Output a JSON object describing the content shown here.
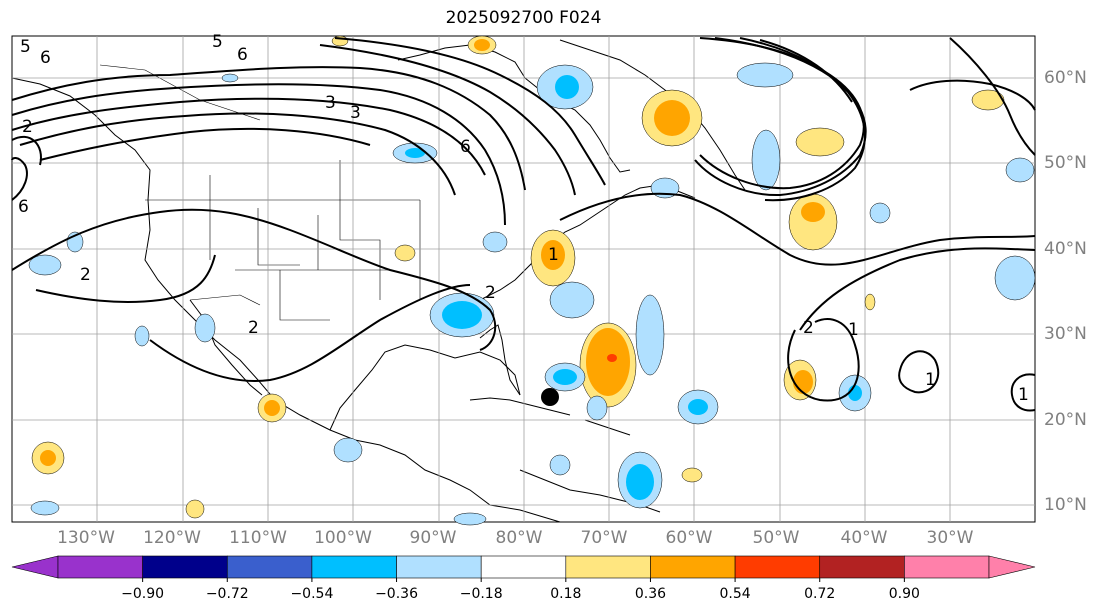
{
  "title": "2025092700 F024",
  "longitude_labels": [
    "130°W",
    "120°W",
    "110°W",
    "100°W",
    "90°W",
    "80°W",
    "70°W",
    "60°W",
    "50°W",
    "40°W",
    "30°W"
  ],
  "latitude_labels": [
    "60°N",
    "50°N",
    "40°N",
    "30°N",
    "20°N",
    "10°N"
  ],
  "colorbar": {
    "colors": [
      "#9932cc",
      "#00008b",
      "#3a5fcd",
      "#00bfff",
      "#b0e0ff",
      "#ffffff",
      "#ffe680",
      "#ffa500",
      "#ff3c00",
      "#b22222",
      "#ff80aa"
    ],
    "under_color": "#9932cc",
    "over_color": "#ff80aa",
    "tick_labels": [
      "−0.90",
      "−0.72",
      "−0.54",
      "−0.36",
      "−0.18",
      "0.18",
      "0.36",
      "0.54",
      "0.72",
      "0.90"
    ]
  },
  "contour_labels": [
    "5",
    "6",
    "3",
    "3",
    "6",
    "1",
    "2",
    "2",
    "2",
    "1",
    "1",
    "1",
    "2",
    "5",
    "6",
    "6",
    "2"
  ],
  "cyclone_marker": {
    "label": "storm center",
    "color": "#000000"
  }
}
